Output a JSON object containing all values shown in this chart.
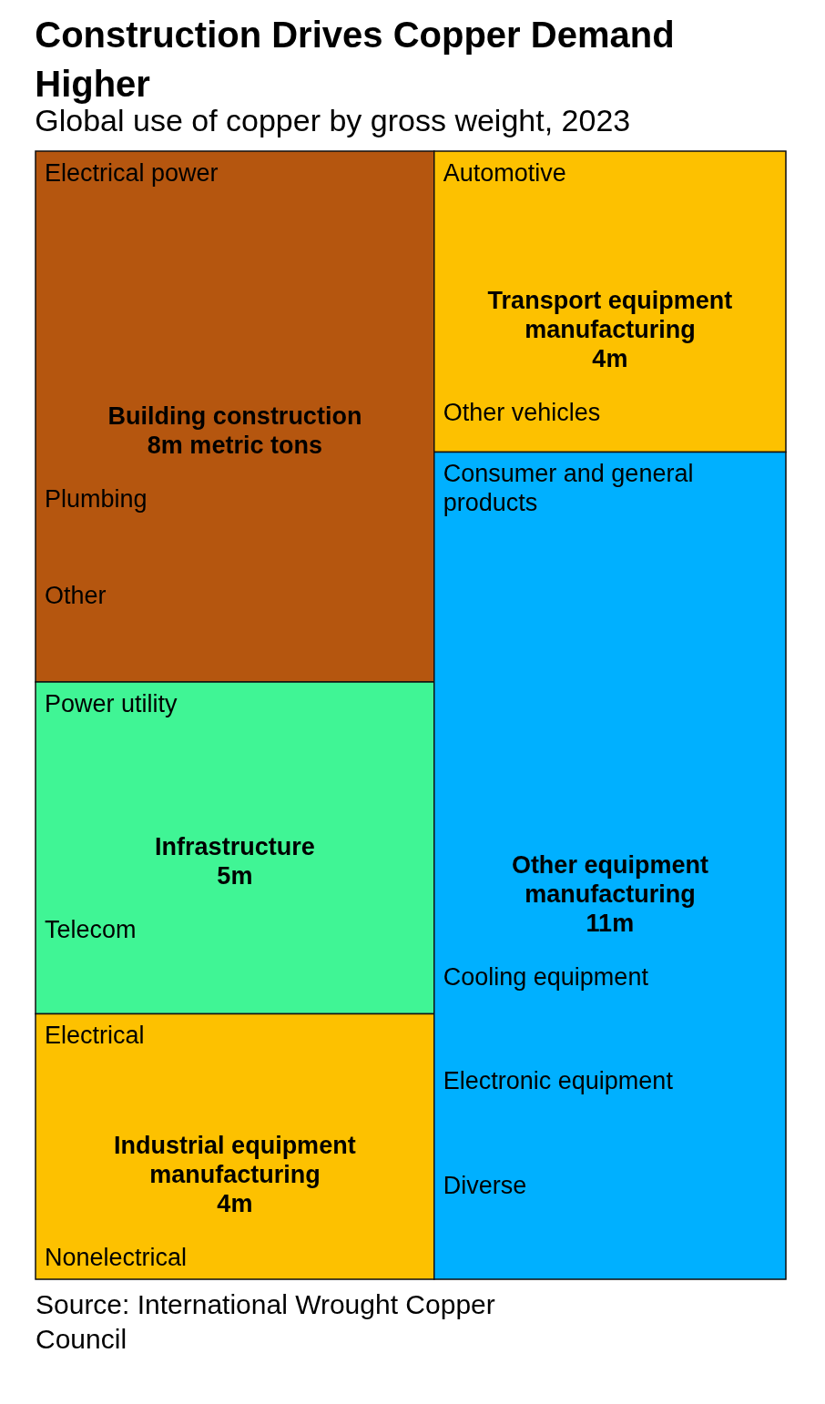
{
  "chart_data": {
    "type": "other",
    "title": "Construction Drives Copper Demand Higher",
    "subtitle": "Global use of copper by gross weight, 2023",
    "categories": [
      "Building construction",
      "Infrastructure",
      "Industrial equipment manufacturing",
      "Transport equipment manufacturing",
      "Other equipment manufacturing"
    ],
    "values": [
      8,
      5,
      4,
      4,
      11
    ],
    "value_labels": [
      "8m metric tons",
      "5m",
      "4m",
      "4m",
      "11m"
    ],
    "colors": [
      "#b5560f",
      "#40f595",
      "#fdc100",
      "#fdc100",
      "#00b0ff"
    ],
    "annotations": [
      {
        "text": "Electrical power",
        "x": "Building construction"
      },
      {
        "text": "Plumbing",
        "x": "Building construction"
      },
      {
        "text": "Other",
        "x": "Building construction"
      },
      {
        "text": "Power utility",
        "x": "Infrastructure"
      },
      {
        "text": "Telecom",
        "x": "Infrastructure"
      },
      {
        "text": "Electrical",
        "x": "Industrial equipment manufacturing"
      },
      {
        "text": "Nonelectrical",
        "x": "Industrial equipment manufacturing"
      },
      {
        "text": "Automotive",
        "x": "Transport equipment manufacturing"
      },
      {
        "text": "Other vehicles",
        "x": "Transport equipment manufacturing"
      },
      {
        "text": "Consumer and general products",
        "x": "Other equipment manufacturing"
      },
      {
        "text": "Cooling equipment",
        "x": "Other equipment manufacturing"
      },
      {
        "text": "Electronic equipment",
        "x": "Other equipment manufacturing"
      },
      {
        "text": "Diverse",
        "x": "Other equipment manufacturing"
      },
      "Source: International Wrought Copper Council"
    ]
  }
}
